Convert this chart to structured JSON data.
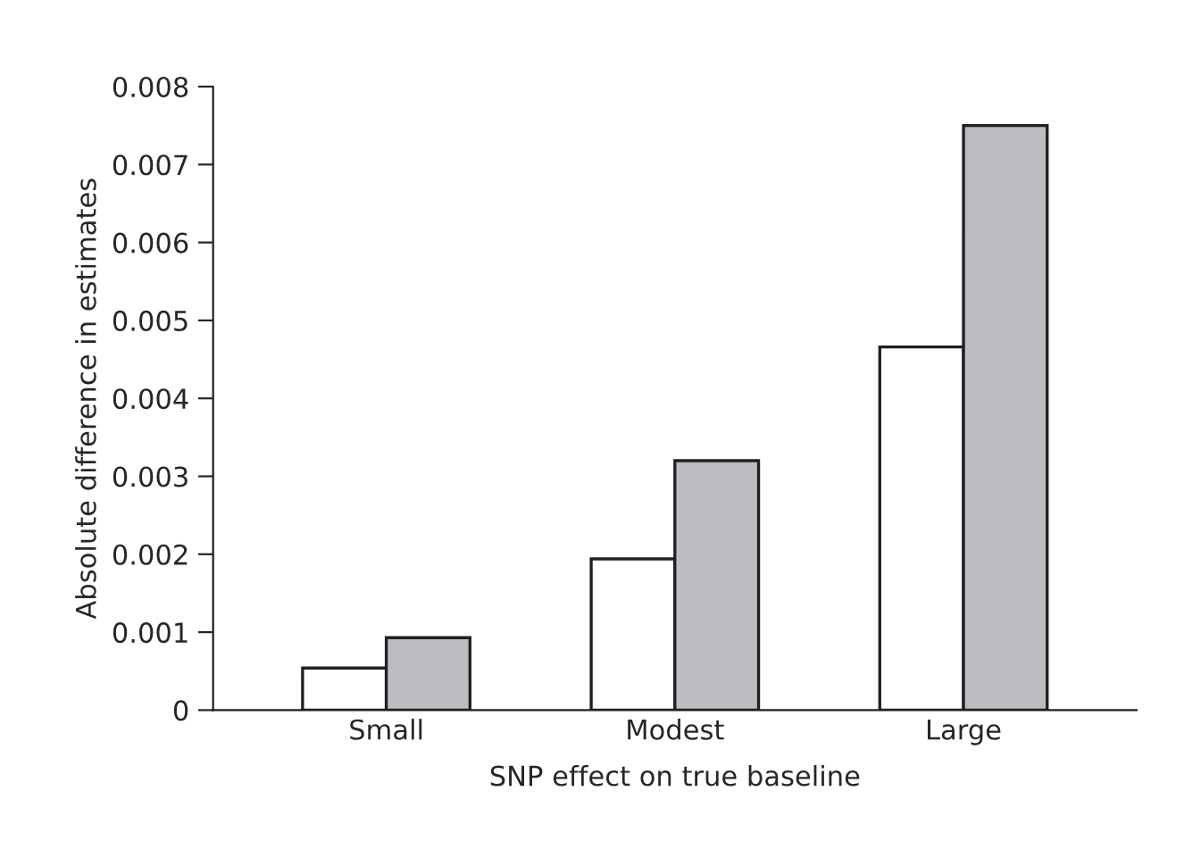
{
  "chart_data": {
    "type": "bar",
    "xlabel": "SNP effect on true baseline",
    "ylabel": "Absolute difference in estimates",
    "categories": [
      "Small",
      "Modest",
      "Large"
    ],
    "series": [
      {
        "color": "#ffffff",
        "values": [
          0.00054,
          0.00194,
          0.00466
        ]
      },
      {
        "color": "#bcbdc0",
        "values": [
          0.00093,
          0.0032,
          0.0075
        ]
      }
    ],
    "ylim": [
      0,
      0.008
    ],
    "yticks": [
      {
        "value": 0,
        "label": "0"
      },
      0.001,
      0.002,
      0.003,
      0.004,
      0.005,
      0.006,
      0.007,
      0.008
    ],
    "grid": false,
    "legend": false
  }
}
